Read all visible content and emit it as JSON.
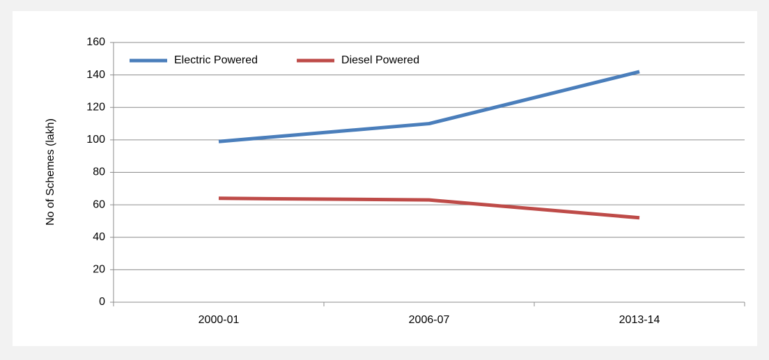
{
  "chart_data": {
    "type": "line",
    "categories": [
      "2000-01",
      "2006-07",
      "2013-14"
    ],
    "series": [
      {
        "name": "Electric Powered",
        "color": "#4a7ebb",
        "values": [
          99,
          110,
          142
        ]
      },
      {
        "name": "Diesel Powered",
        "color": "#be4b48",
        "values": [
          64,
          63,
          52
        ]
      }
    ],
    "y_label": "No of Schemes (lakh)",
    "ylim": [
      0,
      160
    ],
    "yticks": [
      0,
      20,
      40,
      60,
      80,
      100,
      120,
      140,
      160
    ],
    "grid": true,
    "legend": "upper left"
  }
}
